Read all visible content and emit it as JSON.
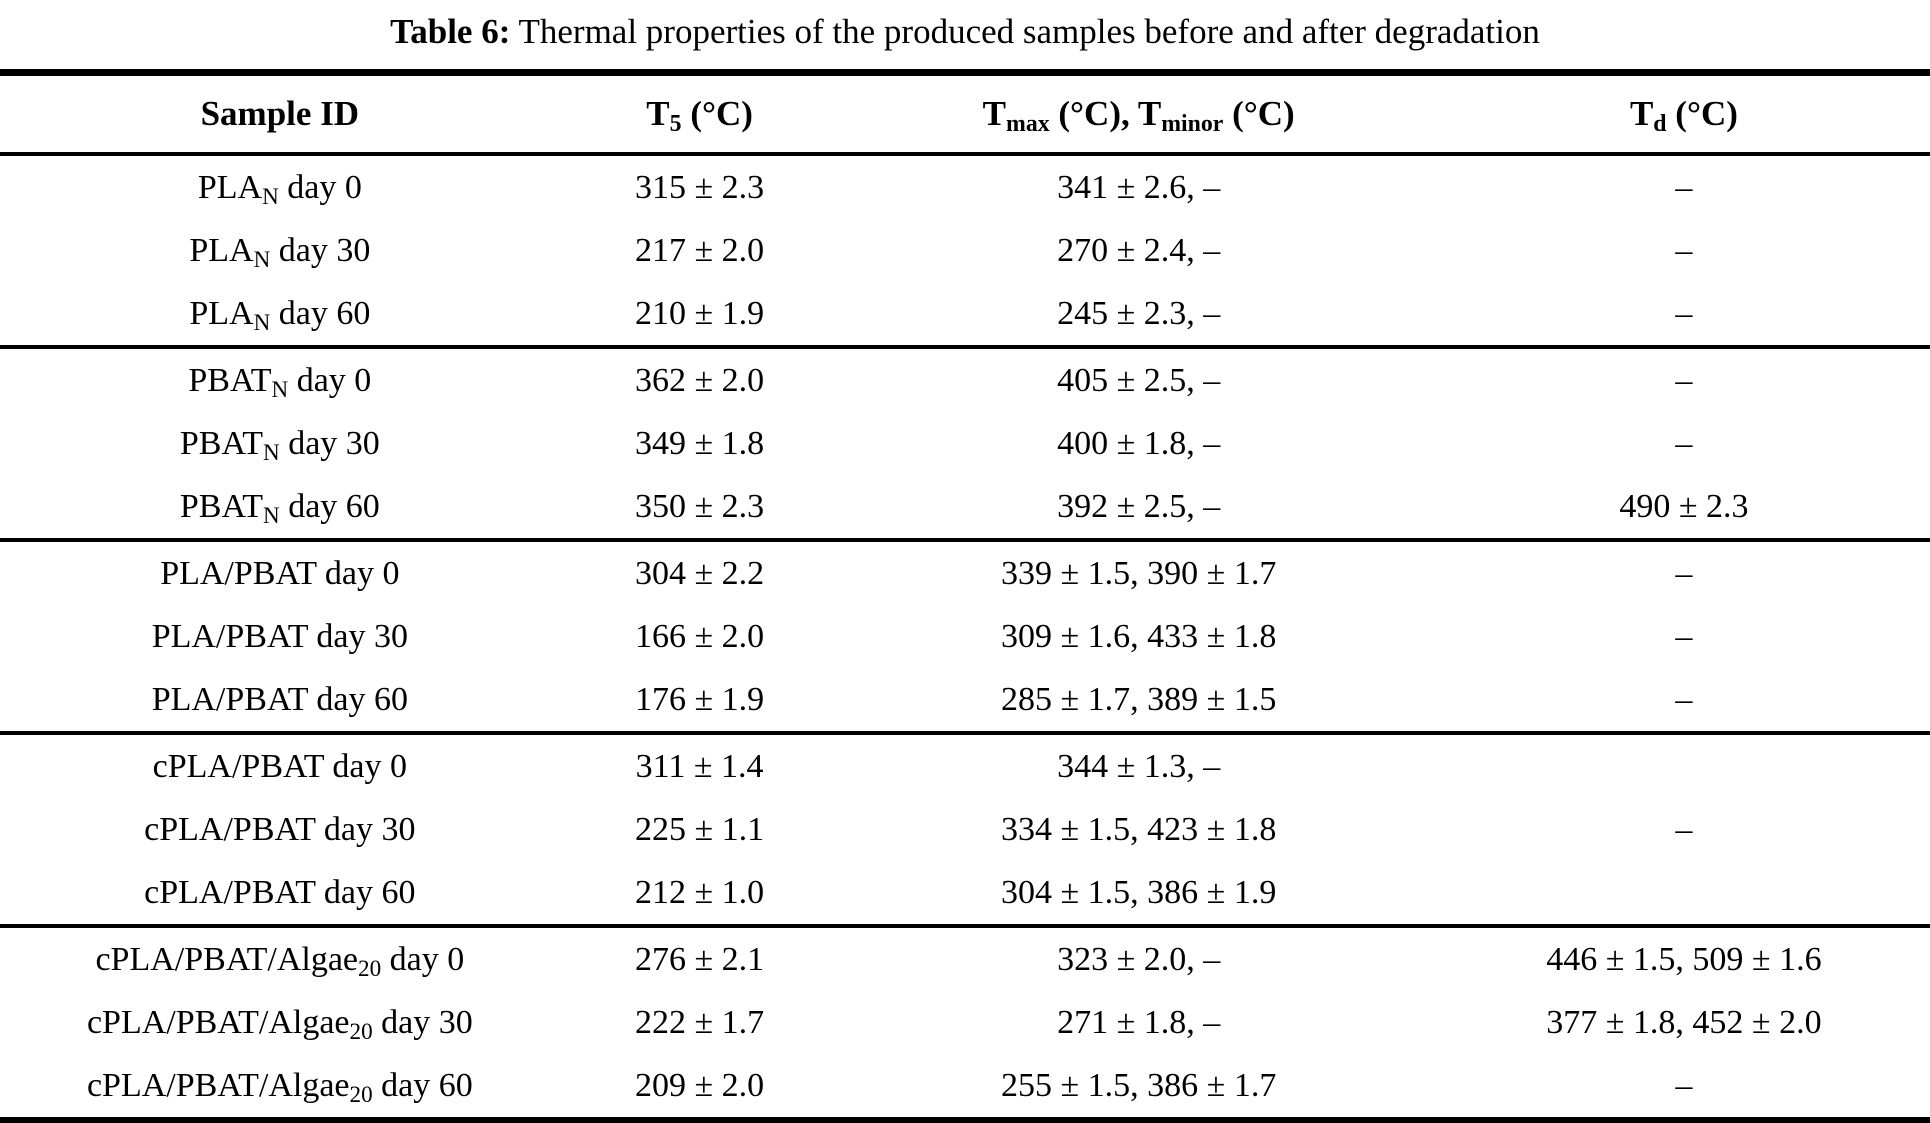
{
  "colors": {
    "background": "#ffffff",
    "text": "#000000",
    "rule": "#000000"
  },
  "caption": {
    "label": "Table 6:",
    "text": "Thermal properties of the produced samples before and after degradation"
  },
  "table": {
    "columns": [
      "Sample ID",
      "T~5~ (°C)",
      "T~max~ (°C), T~minor~ (°C)",
      "T~d~ (°C)"
    ],
    "groups": [
      {
        "name": "PLA_N",
        "rows": [
          [
            "PLA~N~ day 0",
            "315 ± 2.3",
            "341 ± 2.6, –",
            "–"
          ],
          [
            "PLA~N~ day 30",
            "217 ± 2.0",
            "270 ± 2.4, –",
            "–"
          ],
          [
            "PLA~N~ day 60",
            "210 ± 1.9",
            "245 ± 2.3, –",
            "–"
          ]
        ]
      },
      {
        "name": "PBAT_N",
        "rows": [
          [
            "PBAT~N~ day 0",
            "362 ± 2.0",
            "405 ± 2.5, –",
            "–"
          ],
          [
            "PBAT~N~ day 30",
            "349 ± 1.8",
            "400 ± 1.8, –",
            "–"
          ],
          [
            "PBAT~N~ day 60",
            "350 ± 2.3",
            "392 ± 2.5, –",
            "490 ± 2.3"
          ]
        ]
      },
      {
        "name": "PLA/PBAT",
        "rows": [
          [
            "PLA/PBAT day 0",
            "304 ± 2.2",
            "339 ± 1.5, 390 ± 1.7",
            "–"
          ],
          [
            "PLA/PBAT day 30",
            "166 ± 2.0",
            "309 ± 1.6, 433 ± 1.8",
            "–"
          ],
          [
            "PLA/PBAT day 60",
            "176 ± 1.9",
            "285 ± 1.7, 389 ± 1.5",
            "–"
          ]
        ]
      },
      {
        "name": "cPLA/PBAT",
        "rows": [
          [
            "cPLA/PBAT day 0",
            "311 ± 1.4",
            "344 ± 1.3, –",
            ""
          ],
          [
            "cPLA/PBAT day 30",
            "225 ± 1.1",
            "334 ± 1.5, 423 ± 1.8",
            "–"
          ],
          [
            "cPLA/PBAT day 60",
            "212 ± 1.0",
            "304 ± 1.5, 386 ± 1.9",
            ""
          ]
        ]
      },
      {
        "name": "cPLA/PBAT/Algae_20",
        "rows": [
          [
            "cPLA/PBAT/Algae~20~ day 0",
            "276 ± 2.1",
            "323 ± 2.0, –",
            "446 ± 1.5, 509 ± 1.6"
          ],
          [
            "cPLA/PBAT/Algae~20~ day 30",
            "222 ± 1.7",
            "271 ± 1.8, –",
            "377 ± 1.8, 452 ± 2.0"
          ],
          [
            "cPLA/PBAT/Algae~20~ day 60",
            "209 ± 2.0",
            "255 ± 1.5, 386 ± 1.7",
            "–"
          ]
        ]
      }
    ]
  }
}
